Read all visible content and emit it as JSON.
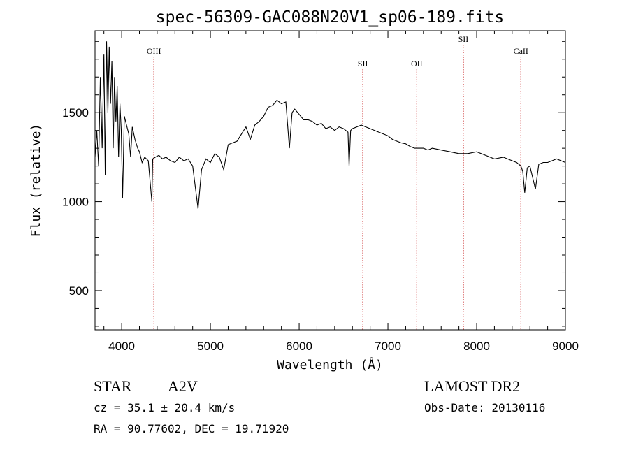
{
  "chart_data": {
    "type": "line",
    "title": "spec-56309-GAC088N20V1_sp06-189.fits",
    "xlabel": "Wavelength (Å)",
    "ylabel": "Flux (relative)",
    "xlim": [
      3700,
      9000
    ],
    "ylim": [
      280,
      1960
    ],
    "x_ticks": [
      4000,
      5000,
      6000,
      7000,
      8000,
      9000
    ],
    "y_ticks": [
      500,
      1000,
      1500
    ],
    "grid": false,
    "series": [
      {
        "x": [
          3700,
          3720,
          3740,
          3760,
          3780,
          3800,
          3815,
          3830,
          3845,
          3860,
          3875,
          3890,
          3905,
          3920,
          3935,
          3950,
          3965,
          3980,
          3995,
          4010,
          4030,
          4060,
          4080,
          4101,
          4120,
          4150,
          4180,
          4200,
          4230,
          4260,
          4300,
          4340,
          4350,
          4380,
          4420,
          4460,
          4500,
          4550,
          4600,
          4650,
          4700,
          4750,
          4800,
          4861,
          4900,
          4950,
          5000,
          5050,
          5100,
          5150,
          5200,
          5250,
          5300,
          5350,
          5400,
          5450,
          5500,
          5550,
          5600,
          5650,
          5700,
          5750,
          5800,
          5850,
          5890,
          5920,
          5950,
          6000,
          6050,
          6100,
          6150,
          6200,
          6250,
          6300,
          6350,
          6400,
          6450,
          6500,
          6550,
          6563,
          6580,
          6600,
          6650,
          6700,
          6750,
          6800,
          6850,
          6900,
          6950,
          7000,
          7050,
          7100,
          7150,
          7200,
          7250,
          7300,
          7350,
          7400,
          7450,
          7500,
          7600,
          7700,
          7800,
          7900,
          8000,
          8100,
          8200,
          8300,
          8400,
          8450,
          8498,
          8520,
          8542,
          8570,
          8600,
          8662,
          8700,
          8750,
          8800,
          8850,
          8900,
          8950,
          9000
        ],
        "y": [
          1250,
          1400,
          1200,
          1700,
          1300,
          1830,
          1150,
          1900,
          1500,
          1870,
          1550,
          1790,
          1300,
          1700,
          1450,
          1650,
          1250,
          1550,
          1400,
          1020,
          1480,
          1420,
          1380,
          1250,
          1420,
          1350,
          1300,
          1280,
          1220,
          1250,
          1230,
          1000,
          1240,
          1250,
          1260,
          1240,
          1250,
          1230,
          1220,
          1250,
          1230,
          1240,
          1200,
          960,
          1180,
          1240,
          1220,
          1270,
          1250,
          1180,
          1320,
          1330,
          1340,
          1380,
          1420,
          1350,
          1430,
          1450,
          1480,
          1530,
          1540,
          1570,
          1550,
          1560,
          1300,
          1500,
          1520,
          1490,
          1460,
          1460,
          1450,
          1430,
          1440,
          1410,
          1420,
          1400,
          1420,
          1410,
          1390,
          1200,
          1400,
          1410,
          1420,
          1430,
          1420,
          1410,
          1400,
          1390,
          1380,
          1370,
          1350,
          1340,
          1330,
          1325,
          1310,
          1300,
          1300,
          1300,
          1290,
          1300,
          1290,
          1280,
          1270,
          1270,
          1280,
          1260,
          1240,
          1250,
          1230,
          1220,
          1200,
          1170,
          1050,
          1190,
          1200,
          1070,
          1210,
          1220,
          1220,
          1230,
          1240,
          1230,
          1220
        ]
      }
    ],
    "spectral_lines": [
      {
        "name": "OIII",
        "wavelength": 4363,
        "label_level": "high"
      },
      {
        "name": "SII",
        "wavelength": 6717,
        "label_level": "low"
      },
      {
        "name": "OII",
        "wavelength": 7325,
        "label_level": "low"
      },
      {
        "name": "SII",
        "wavelength": 7850,
        "label_level": "top"
      },
      {
        "name": "CaII",
        "wavelength": 8498,
        "label_level": "high"
      }
    ],
    "line_color": "#000000",
    "marker_color": "#c00000"
  },
  "info": {
    "object_type": "STAR",
    "subclass": "A2V",
    "survey": "LAMOST DR2",
    "redshift": "cz =  35.1 ± 20.4 km/s",
    "obs_date": "Obs-Date: 20130116",
    "coords": "RA =  90.77602, DEC =  19.71920"
  }
}
